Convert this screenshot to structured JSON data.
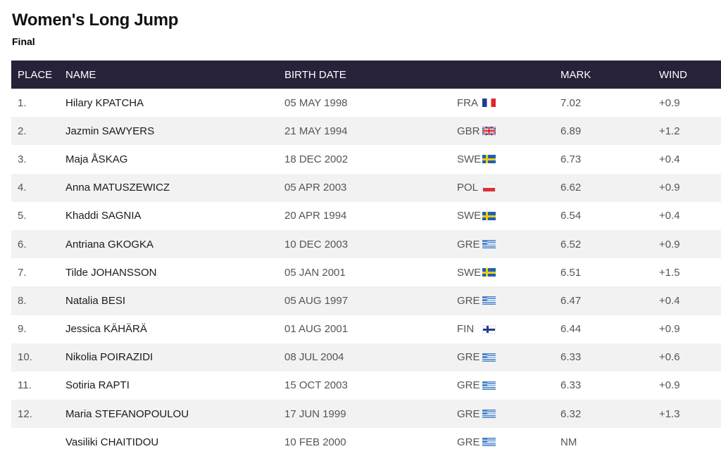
{
  "page": {
    "title": "Women's Long Jump",
    "subtitle": "Final"
  },
  "table": {
    "headers": {
      "place": "PLACE",
      "name": "NAME",
      "birth_date": "BIRTH DATE",
      "country": "",
      "mark": "MARK",
      "wind": "WIND"
    },
    "rows": [
      {
        "place": "1.",
        "name": "Hilary KPATCHA",
        "birth_date": "05 MAY 1998",
        "country": "FRA",
        "flag": "france-flag-icon",
        "mark": "7.02",
        "wind": "+0.9"
      },
      {
        "place": "2.",
        "name": "Jazmin SAWYERS",
        "birth_date": "21 MAY 1994",
        "country": "GBR",
        "flag": "great-britain-flag-icon",
        "mark": "6.89",
        "wind": "+1.2"
      },
      {
        "place": "3.",
        "name": "Maja ÅSKAG",
        "birth_date": "18 DEC 2002",
        "country": "SWE",
        "flag": "sweden-flag-icon",
        "mark": "6.73",
        "wind": "+0.4"
      },
      {
        "place": "4.",
        "name": "Anna MATUSZEWICZ",
        "birth_date": "05 APR 2003",
        "country": "POL",
        "flag": "poland-flag-icon",
        "mark": "6.62",
        "wind": "+0.9"
      },
      {
        "place": "5.",
        "name": "Khaddi SAGNIA",
        "birth_date": "20 APR 1994",
        "country": "SWE",
        "flag": "sweden-flag-icon",
        "mark": "6.54",
        "wind": "+0.4"
      },
      {
        "place": "6.",
        "name": "Antriana GKOGKA",
        "birth_date": "10 DEC 2003",
        "country": "GRE",
        "flag": "greece-flag-icon",
        "mark": "6.52",
        "wind": "+0.9"
      },
      {
        "place": "7.",
        "name": "Tilde JOHANSSON",
        "birth_date": "05 JAN 2001",
        "country": "SWE",
        "flag": "sweden-flag-icon",
        "mark": "6.51",
        "wind": "+1.5"
      },
      {
        "place": "8.",
        "name": "Natalia BESI",
        "birth_date": "05 AUG 1997",
        "country": "GRE",
        "flag": "greece-flag-icon",
        "mark": "6.47",
        "wind": "+0.4"
      },
      {
        "place": "9.",
        "name": "Jessica KÄHÄRÄ",
        "birth_date": "01 AUG 2001",
        "country": "FIN",
        "flag": "finland-flag-icon",
        "mark": "6.44",
        "wind": "+0.9"
      },
      {
        "place": "10.",
        "name": "Nikolia POIRAZIDI",
        "birth_date": "08 JUL 2004",
        "country": "GRE",
        "flag": "greece-flag-icon",
        "mark": "6.33",
        "wind": "+0.6"
      },
      {
        "place": "11.",
        "name": "Sotiria RAPTI",
        "birth_date": "15 OCT 2003",
        "country": "GRE",
        "flag": "greece-flag-icon",
        "mark": "6.33",
        "wind": "+0.9"
      },
      {
        "place": "12.",
        "name": "Maria STEFANOPOULOU",
        "birth_date": "17 JUN 1999",
        "country": "GRE",
        "flag": "greece-flag-icon",
        "mark": "6.32",
        "wind": "+1.3"
      },
      {
        "place": "",
        "name": "Vasiliki CHAITIDOU",
        "birth_date": "10 FEB 2000",
        "country": "GRE",
        "flag": "greece-flag-icon",
        "mark": "NM",
        "wind": ""
      }
    ]
  },
  "colors": {
    "header_bg": "#272139",
    "header_text": "#ffffff",
    "zebra_row": "#f2f2f2"
  }
}
